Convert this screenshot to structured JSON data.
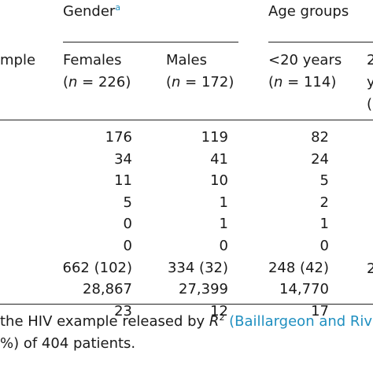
{
  "header": {
    "gender_label": "Gender",
    "gender_sup": "a",
    "age_label": "Age groups",
    "example_partial": "mple",
    "cols": [
      {
        "name": "Females",
        "n_open": "(",
        "n_sym": "n",
        "n_rest": " = 226)"
      },
      {
        "name": "Males",
        "n_open": "(",
        "n_sym": "n",
        "n_rest": " = 172)"
      },
      {
        "name": "<20 years",
        "n_open": "(",
        "n_sym": "n",
        "n_rest": " = 114)"
      }
    ],
    "fourth_col_partial": [
      "2",
      "y",
      "("
    ]
  },
  "rows": [
    [
      "176",
      "119",
      "82"
    ],
    [
      "34",
      "41",
      "24"
    ],
    [
      "11",
      "10",
      "5"
    ],
    [
      "5",
      "1",
      "2"
    ],
    [
      "0",
      "1",
      "1"
    ],
    [
      "0",
      "0",
      "0"
    ],
    [
      "662 (102)",
      "334 (32)",
      "248 (42)"
    ],
    [
      "28,867",
      "27,399",
      "14,770"
    ],
    [
      "23",
      "12",
      "17"
    ]
  ],
  "row7_col4_partial": "2",
  "footnote": {
    "line1_pre": "the HIV example released by ",
    "line1_R": "R",
    "line1_sup": "2",
    "line1_link": " (Baillargeon and Riv",
    "line2": "%) of 404 patients."
  }
}
